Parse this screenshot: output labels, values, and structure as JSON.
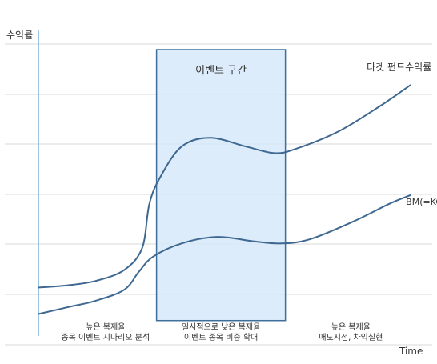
{
  "chart_data": {
    "type": "line",
    "ylabel": "수익률",
    "xlabel": "Time",
    "grid": true,
    "axis_ticks": false,
    "colors": {
      "line": "#3e6890",
      "grid": "#d8d8d8",
      "axis": "#7fb0dc",
      "box_fill": "#d6e9fa",
      "box_stroke": "#3f6e9b",
      "text": "#333333"
    },
    "series": [
      {
        "name": "타겟 펀드수익률",
        "points": [
          [
            0,
            12
          ],
          [
            4,
            13
          ],
          [
            8,
            15
          ],
          [
            12,
            20
          ],
          [
            14.5,
            30
          ],
          [
            15.5,
            50
          ],
          [
            17,
            62
          ],
          [
            20,
            76
          ],
          [
            24,
            80
          ],
          [
            29,
            76
          ],
          [
            33,
            73
          ],
          [
            36,
            75
          ],
          [
            42,
            83
          ],
          [
            48,
            95
          ],
          [
            52,
            104
          ]
        ]
      },
      {
        "name": "BM(=KOSPI)",
        "points": [
          [
            0,
            0
          ],
          [
            4,
            3
          ],
          [
            8,
            6
          ],
          [
            12,
            11
          ],
          [
            14,
            19
          ],
          [
            16,
            26
          ],
          [
            20,
            32
          ],
          [
            25,
            35
          ],
          [
            30,
            33
          ],
          [
            34,
            32
          ],
          [
            38,
            34
          ],
          [
            44,
            42
          ],
          [
            49,
            50
          ],
          [
            52,
            54
          ]
        ]
      }
    ],
    "xlim": [
      0,
      55
    ],
    "ylim": [
      -10,
      128
    ],
    "highlight_region": {
      "label": "이벤트 구간",
      "x_range": [
        16.5,
        34.5
      ],
      "y_range": [
        -3,
        120
      ]
    },
    "phases": [
      {
        "line1": "높은 복제율",
        "line2": "종목 이벤트 시나리오 분석"
      },
      {
        "line1": "일시적으로 낮은 복제율",
        "line2": "이벤트 종목 비중 확대"
      },
      {
        "line1": "높은 복제율",
        "line2": "매도시점, 차익실현"
      }
    ]
  }
}
